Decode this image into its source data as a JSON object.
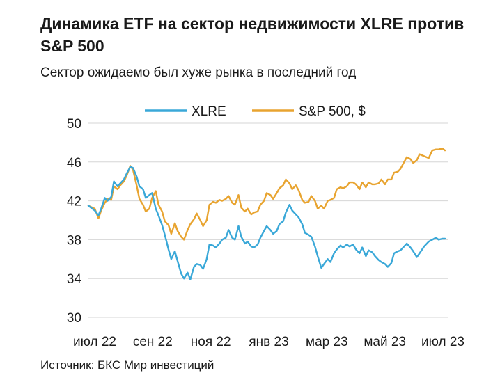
{
  "title": "Динамика ETF на сектор недвижимости XLRE против S&P 500",
  "subtitle": "Сектор ожидаемо был хуже рынка в последний год",
  "source": "Источник: БКС Мир инвестиций",
  "colors": {
    "xlre": "#3aa8d8",
    "sp500": "#e8a430",
    "grid": "#d6d6d6"
  },
  "chart_data": {
    "type": "line",
    "title": "Динамика ETF на сектор недвижимости XLRE против S&P 500",
    "subtitle": "Сектор ожидаемо был хуже рынка в последний год",
    "legend_position": "top",
    "grid": true,
    "ylim": [
      30,
      50
    ],
    "yticks": [
      30,
      34,
      38,
      42,
      46,
      50
    ],
    "xticks": [
      "июл 22",
      "сен 22",
      "ноя 22",
      "янв 23",
      "мар 23",
      "май 23",
      "июл 23"
    ],
    "xlim": [
      "2022-07-01",
      "2023-07-31"
    ],
    "series": [
      {
        "name": "XLRE",
        "points": [
          [
            "2022-07-01",
            41.5
          ],
          [
            "2022-07-08",
            41.0
          ],
          [
            "2022-07-12",
            40.5
          ],
          [
            "2022-07-15",
            41.2
          ],
          [
            "2022-07-19",
            42.3
          ],
          [
            "2022-07-22",
            42.0
          ],
          [
            "2022-07-26",
            42.4
          ],
          [
            "2022-07-29",
            44.0
          ],
          [
            "2022-08-02",
            43.5
          ],
          [
            "2022-08-05",
            43.8
          ],
          [
            "2022-08-09",
            44.2
          ],
          [
            "2022-08-12",
            44.8
          ],
          [
            "2022-08-16",
            45.5
          ],
          [
            "2022-08-19",
            45.4
          ],
          [
            "2022-08-23",
            44.5
          ],
          [
            "2022-08-26",
            43.5
          ],
          [
            "2022-08-30",
            43.2
          ],
          [
            "2022-09-02",
            42.3
          ],
          [
            "2022-09-06",
            42.6
          ],
          [
            "2022-09-09",
            42.8
          ],
          [
            "2022-09-13",
            41.2
          ],
          [
            "2022-09-16",
            40.5
          ],
          [
            "2022-09-20",
            39.5
          ],
          [
            "2022-09-23",
            38.5
          ],
          [
            "2022-09-27",
            37.0
          ],
          [
            "2022-09-30",
            36.0
          ],
          [
            "2022-10-04",
            36.8
          ],
          [
            "2022-10-07",
            35.8
          ],
          [
            "2022-10-11",
            34.5
          ],
          [
            "2022-10-14",
            34.0
          ],
          [
            "2022-10-18",
            34.6
          ],
          [
            "2022-10-21",
            33.9
          ],
          [
            "2022-10-25",
            35.2
          ],
          [
            "2022-10-28",
            35.5
          ],
          [
            "2022-11-01",
            35.4
          ],
          [
            "2022-11-04",
            35.0
          ],
          [
            "2022-11-08",
            36.0
          ],
          [
            "2022-11-11",
            37.5
          ],
          [
            "2022-11-15",
            37.4
          ],
          [
            "2022-11-18",
            37.2
          ],
          [
            "2022-11-22",
            37.6
          ],
          [
            "2022-11-25",
            38.0
          ],
          [
            "2022-11-29",
            38.2
          ],
          [
            "2022-12-02",
            39.0
          ],
          [
            "2022-12-06",
            38.2
          ],
          [
            "2022-12-09",
            38.0
          ],
          [
            "2022-12-13",
            39.4
          ],
          [
            "2022-12-16",
            38.3
          ],
          [
            "2022-12-20",
            37.6
          ],
          [
            "2022-12-23",
            37.8
          ],
          [
            "2022-12-27",
            37.3
          ],
          [
            "2022-12-30",
            37.2
          ],
          [
            "2023-01-03",
            37.5
          ],
          [
            "2023-01-06",
            38.2
          ],
          [
            "2023-01-10",
            38.9
          ],
          [
            "2023-01-13",
            39.4
          ],
          [
            "2023-01-17",
            39.0
          ],
          [
            "2023-01-20",
            38.6
          ],
          [
            "2023-01-24",
            38.9
          ],
          [
            "2023-01-27",
            39.6
          ],
          [
            "2023-01-31",
            39.9
          ],
          [
            "2023-02-03",
            40.8
          ],
          [
            "2023-02-07",
            41.6
          ],
          [
            "2023-02-10",
            41.0
          ],
          [
            "2023-02-14",
            40.6
          ],
          [
            "2023-02-17",
            40.3
          ],
          [
            "2023-02-21",
            39.6
          ],
          [
            "2023-02-24",
            38.7
          ],
          [
            "2023-02-28",
            38.5
          ],
          [
            "2023-03-03",
            38.3
          ],
          [
            "2023-03-07",
            37.3
          ],
          [
            "2023-03-10",
            36.3
          ],
          [
            "2023-03-14",
            35.1
          ],
          [
            "2023-03-17",
            35.5
          ],
          [
            "2023-03-21",
            36.0
          ],
          [
            "2023-03-24",
            35.7
          ],
          [
            "2023-03-28",
            36.6
          ],
          [
            "2023-03-31",
            37.0
          ],
          [
            "2023-04-04",
            37.4
          ],
          [
            "2023-04-07",
            37.2
          ],
          [
            "2023-04-11",
            37.5
          ],
          [
            "2023-04-14",
            37.3
          ],
          [
            "2023-04-18",
            37.5
          ],
          [
            "2023-04-21",
            37.0
          ],
          [
            "2023-04-25",
            36.6
          ],
          [
            "2023-04-28",
            37.2
          ],
          [
            "2023-05-02",
            36.3
          ],
          [
            "2023-05-05",
            36.9
          ],
          [
            "2023-05-09",
            36.7
          ],
          [
            "2023-05-12",
            36.3
          ],
          [
            "2023-05-16",
            35.9
          ],
          [
            "2023-05-19",
            35.7
          ],
          [
            "2023-05-23",
            35.5
          ],
          [
            "2023-05-26",
            35.2
          ],
          [
            "2023-05-30",
            35.6
          ],
          [
            "2023-06-02",
            36.6
          ],
          [
            "2023-06-06",
            36.8
          ],
          [
            "2023-06-09",
            36.9
          ],
          [
            "2023-06-13",
            37.3
          ],
          [
            "2023-06-16",
            37.6
          ],
          [
            "2023-06-20",
            37.2
          ],
          [
            "2023-06-23",
            36.8
          ],
          [
            "2023-06-27",
            36.2
          ],
          [
            "2023-06-30",
            36.6
          ],
          [
            "2023-07-05",
            37.3
          ],
          [
            "2023-07-10",
            37.8
          ],
          [
            "2023-07-14",
            38.0
          ],
          [
            "2023-07-18",
            38.2
          ],
          [
            "2023-07-21",
            38.0
          ],
          [
            "2023-07-25",
            38.1
          ],
          [
            "2023-07-28",
            38.1
          ]
        ]
      },
      {
        "name": "S&P 500, $",
        "points": [
          [
            "2022-07-01",
            41.5
          ],
          [
            "2022-07-08",
            41.2
          ],
          [
            "2022-07-12",
            40.2
          ],
          [
            "2022-07-15",
            41.0
          ],
          [
            "2022-07-19",
            41.8
          ],
          [
            "2022-07-22",
            42.2
          ],
          [
            "2022-07-26",
            42.1
          ],
          [
            "2022-07-29",
            43.5
          ],
          [
            "2022-08-02",
            43.2
          ],
          [
            "2022-08-05",
            43.6
          ],
          [
            "2022-08-09",
            44.0
          ],
          [
            "2022-08-12",
            44.6
          ],
          [
            "2022-08-16",
            45.6
          ],
          [
            "2022-08-19",
            45.2
          ],
          [
            "2022-08-23",
            43.6
          ],
          [
            "2022-08-26",
            42.2
          ],
          [
            "2022-08-30",
            41.6
          ],
          [
            "2022-09-02",
            40.9
          ],
          [
            "2022-09-06",
            41.2
          ],
          [
            "2022-09-09",
            42.3
          ],
          [
            "2022-09-13",
            43.0
          ],
          [
            "2022-09-16",
            41.6
          ],
          [
            "2022-09-20",
            40.9
          ],
          [
            "2022-09-23",
            39.9
          ],
          [
            "2022-09-27",
            39.5
          ],
          [
            "2022-09-30",
            38.6
          ],
          [
            "2022-10-04",
            39.7
          ],
          [
            "2022-10-07",
            38.9
          ],
          [
            "2022-10-11",
            38.3
          ],
          [
            "2022-10-14",
            38.0
          ],
          [
            "2022-10-18",
            39.0
          ],
          [
            "2022-10-21",
            39.6
          ],
          [
            "2022-10-25",
            40.1
          ],
          [
            "2022-10-28",
            40.7
          ],
          [
            "2022-11-01",
            40.0
          ],
          [
            "2022-11-04",
            39.4
          ],
          [
            "2022-11-08",
            40.0
          ],
          [
            "2022-11-11",
            41.6
          ],
          [
            "2022-11-15",
            41.9
          ],
          [
            "2022-11-18",
            41.8
          ],
          [
            "2022-11-22",
            42.1
          ],
          [
            "2022-11-25",
            42.0
          ],
          [
            "2022-11-29",
            42.2
          ],
          [
            "2022-12-02",
            42.5
          ],
          [
            "2022-12-06",
            41.8
          ],
          [
            "2022-12-09",
            41.6
          ],
          [
            "2022-12-13",
            42.6
          ],
          [
            "2022-12-16",
            41.3
          ],
          [
            "2022-12-20",
            40.9
          ],
          [
            "2022-12-23",
            41.2
          ],
          [
            "2022-12-27",
            40.6
          ],
          [
            "2022-12-30",
            40.8
          ],
          [
            "2023-01-03",
            40.9
          ],
          [
            "2023-01-06",
            41.6
          ],
          [
            "2023-01-10",
            42.0
          ],
          [
            "2023-01-13",
            42.8
          ],
          [
            "2023-01-17",
            42.6
          ],
          [
            "2023-01-20",
            42.2
          ],
          [
            "2023-01-24",
            42.8
          ],
          [
            "2023-01-27",
            43.3
          ],
          [
            "2023-01-31",
            43.6
          ],
          [
            "2023-02-03",
            44.2
          ],
          [
            "2023-02-07",
            43.8
          ],
          [
            "2023-02-10",
            43.2
          ],
          [
            "2023-02-14",
            43.6
          ],
          [
            "2023-02-17",
            43.1
          ],
          [
            "2023-02-21",
            42.1
          ],
          [
            "2023-02-24",
            41.8
          ],
          [
            "2023-02-28",
            41.9
          ],
          [
            "2023-03-03",
            42.5
          ],
          [
            "2023-03-07",
            42.0
          ],
          [
            "2023-03-10",
            41.2
          ],
          [
            "2023-03-14",
            41.5
          ],
          [
            "2023-03-17",
            41.2
          ],
          [
            "2023-03-21",
            42.0
          ],
          [
            "2023-03-24",
            42.1
          ],
          [
            "2023-03-28",
            42.3
          ],
          [
            "2023-03-31",
            43.2
          ],
          [
            "2023-04-04",
            43.4
          ],
          [
            "2023-04-07",
            43.3
          ],
          [
            "2023-04-11",
            43.5
          ],
          [
            "2023-04-14",
            43.9
          ],
          [
            "2023-04-18",
            43.9
          ],
          [
            "2023-04-21",
            43.7
          ],
          [
            "2023-04-25",
            43.2
          ],
          [
            "2023-04-28",
            43.9
          ],
          [
            "2023-05-02",
            43.4
          ],
          [
            "2023-05-05",
            43.9
          ],
          [
            "2023-05-09",
            43.7
          ],
          [
            "2023-05-12",
            43.7
          ],
          [
            "2023-05-16",
            43.8
          ],
          [
            "2023-05-19",
            44.2
          ],
          [
            "2023-05-23",
            43.7
          ],
          [
            "2023-05-26",
            44.2
          ],
          [
            "2023-05-30",
            44.2
          ],
          [
            "2023-06-02",
            44.9
          ],
          [
            "2023-06-06",
            45.0
          ],
          [
            "2023-06-09",
            45.3
          ],
          [
            "2023-06-13",
            46.0
          ],
          [
            "2023-06-16",
            46.5
          ],
          [
            "2023-06-20",
            46.3
          ],
          [
            "2023-06-23",
            45.9
          ],
          [
            "2023-06-27",
            46.2
          ],
          [
            "2023-06-30",
            46.8
          ],
          [
            "2023-07-05",
            46.6
          ],
          [
            "2023-07-10",
            46.4
          ],
          [
            "2023-07-14",
            47.2
          ],
          [
            "2023-07-18",
            47.3
          ],
          [
            "2023-07-21",
            47.3
          ],
          [
            "2023-07-25",
            47.4
          ],
          [
            "2023-07-28",
            47.2
          ]
        ]
      }
    ]
  }
}
